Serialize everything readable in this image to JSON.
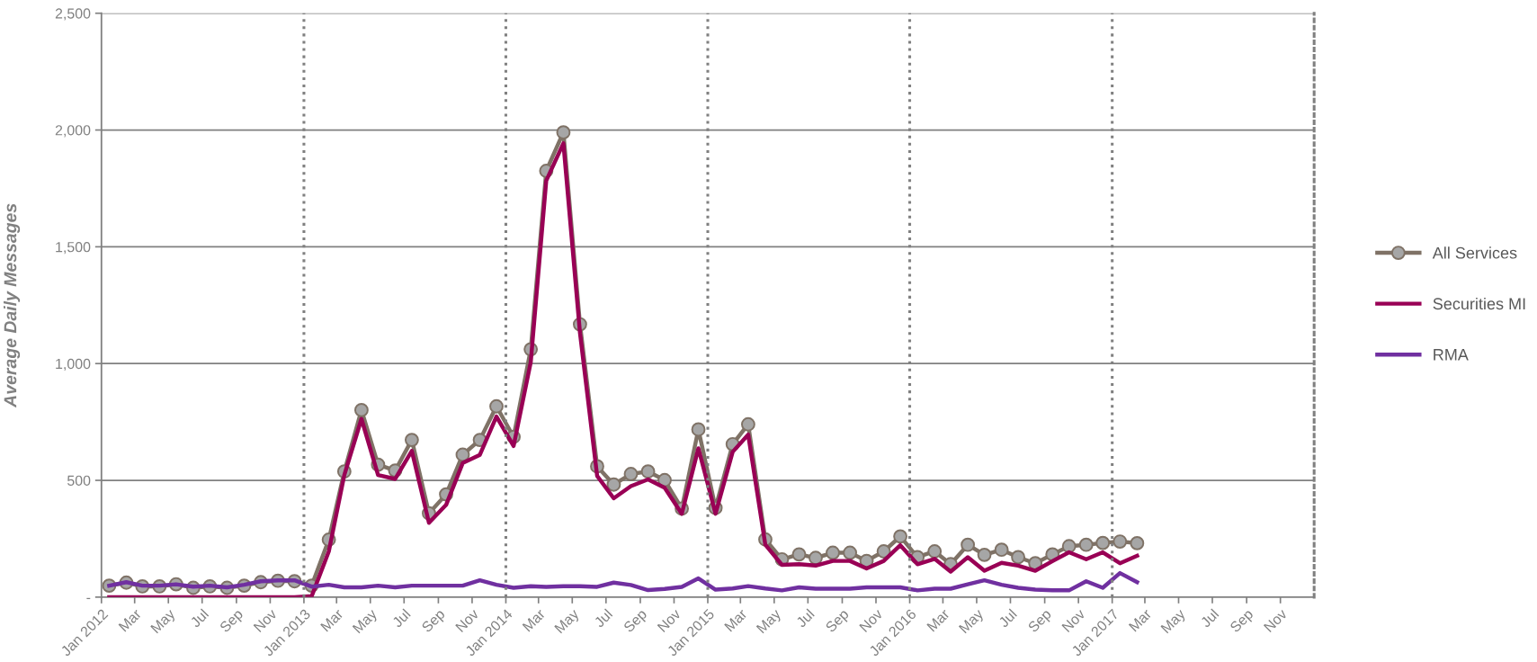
{
  "chart_data": {
    "type": "line",
    "ylabel": "Average Daily Messages",
    "x": [
      "2012-01-15",
      "2012-02-15",
      "2012-03-15",
      "2012-04-15",
      "2012-05-15",
      "2012-06-15",
      "2012-07-15",
      "2012-08-15",
      "2012-09-15",
      "2012-10-15",
      "2012-11-15",
      "2012-12-15",
      "2013-01-15",
      "2013-02-15",
      "2013-03-15",
      "2013-04-15",
      "2013-05-15",
      "2013-06-15",
      "2013-07-15",
      "2013-08-15",
      "2013-09-15",
      "2013-10-15",
      "2013-11-15",
      "2013-12-15",
      "2014-01-15",
      "2014-02-15",
      "2014-03-15",
      "2014-04-15",
      "2014-05-15",
      "2014-06-15",
      "2014-07-15",
      "2014-08-15",
      "2014-09-15",
      "2014-10-15",
      "2014-11-15",
      "2014-12-15",
      "2015-01-15",
      "2015-02-15",
      "2015-03-15",
      "2015-04-15",
      "2015-05-15",
      "2015-06-15",
      "2015-07-15",
      "2015-08-15",
      "2015-09-15",
      "2015-10-15",
      "2015-11-15",
      "2015-12-15",
      "2016-01-15",
      "2016-02-15",
      "2016-03-15",
      "2016-04-15",
      "2016-05-15",
      "2016-06-15",
      "2016-07-15",
      "2016-08-15",
      "2016-09-15",
      "2016-10-15",
      "2016-11-15",
      "2016-12-15",
      "2017-01-15",
      "2017-02-15"
    ],
    "series": [
      {
        "name": "All Services",
        "color": "#7f7266",
        "marker": "circle",
        "values": [
          49,
          62,
          46,
          46,
          55,
          40,
          46,
          40,
          49,
          64,
          70,
          68,
          49,
          246,
          538,
          801,
          567,
          542,
          673,
          359,
          440,
          610,
          673,
          817,
          686,
          1061,
          1825,
          1990,
          1168,
          560,
          482,
          527,
          538,
          501,
          379,
          718,
          382,
          655,
          740,
          247,
          162,
          183,
          168,
          190,
          190,
          155,
          196,
          260,
          171,
          196,
          141,
          224,
          181,
          203,
          171,
          145,
          183,
          218,
          224,
          232,
          238,
          231
        ]
      },
      {
        "name": "Securities MI",
        "color": "#990055",
        "values": [
          0,
          0,
          0,
          0,
          0,
          0,
          0,
          0,
          0,
          0,
          0,
          0,
          4,
          196,
          523,
          763,
          523,
          506,
          626,
          318,
          395,
          574,
          609,
          773,
          647,
          1006,
          1783,
          1943,
          1131,
          519,
          423,
          475,
          504,
          468,
          357,
          637,
          357,
          622,
          696,
          224,
          138,
          141,
          135,
          155,
          155,
          123,
          155,
          222,
          141,
          164,
          109,
          171,
          113,
          147,
          135,
          113,
          154,
          192,
          162,
          192,
          145,
          177
        ]
      },
      {
        "name": "RMA",
        "color": "#7030a0",
        "values": [
          49,
          64,
          49,
          49,
          55,
          45,
          49,
          42,
          53,
          68,
          72,
          72,
          45,
          53,
          42,
          42,
          49,
          42,
          49,
          49,
          49,
          49,
          72,
          53,
          40,
          47,
          44,
          47,
          47,
          44,
          62,
          52,
          30,
          35,
          44,
          80,
          32,
          37,
          47,
          37,
          29,
          42,
          36,
          36,
          36,
          42,
          42,
          42,
          29,
          36,
          36,
          55,
          72,
          53,
          40,
          32,
          29,
          29,
          68,
          40,
          103,
          64
        ]
      }
    ],
    "xlim": [
      "2012-01-01",
      "2018-01-01"
    ],
    "xticks": [
      {
        "value": "2012-01-01",
        "label": "Jan 2012"
      },
      {
        "value": "2012-03-01",
        "label": "Mar"
      },
      {
        "value": "2012-05-01",
        "label": "May"
      },
      {
        "value": "2012-07-01",
        "label": "Jul"
      },
      {
        "value": "2012-09-01",
        "label": "Sep"
      },
      {
        "value": "2012-11-01",
        "label": "Nov"
      },
      {
        "value": "2013-01-01",
        "label": "Jan 2013"
      },
      {
        "value": "2013-03-01",
        "label": "Mar"
      },
      {
        "value": "2013-05-01",
        "label": "May"
      },
      {
        "value": "2013-07-01",
        "label": "Jul"
      },
      {
        "value": "2013-09-01",
        "label": "Sep"
      },
      {
        "value": "2013-11-01",
        "label": "Nov"
      },
      {
        "value": "2014-01-01",
        "label": "Jan 2014"
      },
      {
        "value": "2014-03-01",
        "label": "Mar"
      },
      {
        "value": "2014-05-01",
        "label": "May"
      },
      {
        "value": "2014-07-01",
        "label": "Jul"
      },
      {
        "value": "2014-09-01",
        "label": "Sep"
      },
      {
        "value": "2014-11-01",
        "label": "Nov"
      },
      {
        "value": "2015-01-01",
        "label": "Jan 2015"
      },
      {
        "value": "2015-03-01",
        "label": "Mar"
      },
      {
        "value": "2015-05-01",
        "label": "May"
      },
      {
        "value": "2015-07-01",
        "label": "Jul"
      },
      {
        "value": "2015-09-01",
        "label": "Sep"
      },
      {
        "value": "2015-11-01",
        "label": "Nov"
      },
      {
        "value": "2016-01-01",
        "label": "Jan 2016"
      },
      {
        "value": "2016-03-01",
        "label": "Mar"
      },
      {
        "value": "2016-05-01",
        "label": "May"
      },
      {
        "value": "2016-07-01",
        "label": "Jul"
      },
      {
        "value": "2016-09-01",
        "label": "Sep"
      },
      {
        "value": "2016-11-01",
        "label": "Nov"
      },
      {
        "value": "2017-01-01",
        "label": "Jan 2017"
      },
      {
        "value": "2017-03-01",
        "label": "Mar"
      },
      {
        "value": "2017-05-01",
        "label": "May"
      },
      {
        "value": "2017-07-01",
        "label": "Jul"
      },
      {
        "value": "2017-09-01",
        "label": "Sep"
      },
      {
        "value": "2017-11-01",
        "label": "Nov"
      }
    ],
    "ylim": [
      0,
      2500
    ],
    "yticks": [
      {
        "value": 0,
        "label": "-"
      },
      500,
      {
        "value": 1000,
        "label": "1,000"
      },
      {
        "value": 1500,
        "label": "1,500"
      },
      {
        "value": 2000,
        "label": "2,000"
      },
      {
        "value": 2500,
        "label": "2,500"
      }
    ],
    "ref_lines": [
      {
        "axis": "x",
        "value": "2013-01-01",
        "color": "#808080",
        "line_style": "dotted"
      },
      {
        "axis": "x",
        "value": "2014-01-01",
        "color": "#808080",
        "line_style": "dotted"
      },
      {
        "axis": "x",
        "value": "2015-01-01",
        "color": "#808080",
        "line_style": "dotted"
      },
      {
        "axis": "x",
        "value": "2016-01-01",
        "color": "#808080",
        "line_style": "dotted"
      },
      {
        "axis": "x",
        "value": "2017-01-01",
        "color": "#808080",
        "line_style": "dotted"
      }
    ],
    "grid": "y",
    "legend": "right",
    "line_style": "solid"
  }
}
